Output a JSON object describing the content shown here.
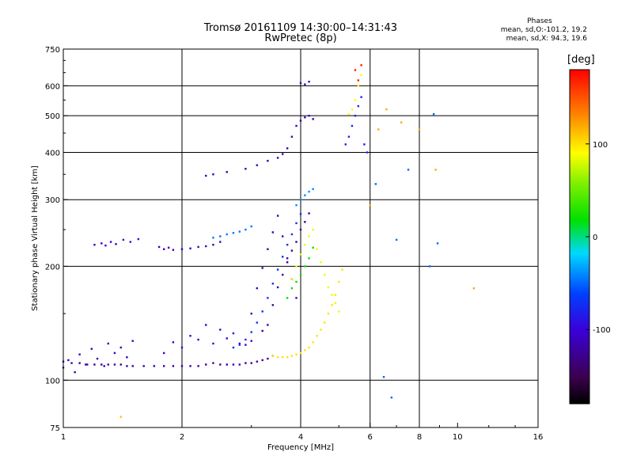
{
  "title": {
    "line1": "Tromsø 20161109 14:30:00–14:31:43",
    "line2": "RwPretec (8p)"
  },
  "phases": {
    "header": "Phases",
    "line1": "mean, sd,O:-101.2, 19.2",
    "line2": "mean, sd,X:  94.3, 19.6"
  },
  "colorbar": {
    "unit": "[deg]",
    "range": [
      -180,
      180
    ],
    "ticks": [
      100,
      0,
      -100
    ],
    "tick_labels": [
      "100",
      "0",
      "-100"
    ]
  },
  "chart_data": {
    "type": "scatter",
    "title": "Tromsø 20161109 14:30:00–14:31:43",
    "subtitle": "RwPretec (8p)",
    "xlabel": "Frequency [MHz]",
    "ylabel": "Stationary phase Virtual Height [km]",
    "xscale": "log",
    "yscale": "log",
    "xlim": [
      1,
      16
    ],
    "ylim": [
      75,
      750
    ],
    "xticks": [
      1,
      2,
      4,
      6,
      8,
      10,
      16
    ],
    "xtick_labels": [
      "1",
      "2",
      "4",
      "6",
      "8",
      "10",
      "16"
    ],
    "yticks": [
      75,
      100,
      200,
      300,
      400,
      500,
      600,
      750
    ],
    "ytick_labels": [
      "75",
      "100",
      "200",
      "300",
      "400",
      "500",
      "600",
      "750"
    ],
    "grid_x": [
      2,
      4,
      6,
      8
    ],
    "grid_y": [
      100,
      200,
      300,
      400,
      500,
      600
    ],
    "grid": true,
    "color_scale": "rainbow",
    "color_range": [
      -180,
      180
    ],
    "series": [
      {
        "traces": [
          {
            "x": [
              1.0,
              1.05,
              1.1,
              1.15,
              1.2,
              1.25,
              1.3,
              1.35,
              1.4,
              1.45,
              1.5,
              1.6,
              1.7,
              1.8,
              1.9,
              2.0,
              2.1,
              2.2,
              2.3,
              2.4,
              2.5,
              2.6,
              2.7,
              2.8,
              2.9,
              3.0,
              3.1,
              3.2,
              3.3,
              3.4
            ],
            "y": [
              112,
              111,
              111,
              110,
              110,
              110,
              110,
              110,
              110,
              109,
              109,
              109,
              109,
              109,
              109,
              109,
              109,
              109,
              110,
              111,
              110,
              110,
              110,
              110,
              111,
              111,
              112,
              113,
              114,
              116
            ],
            "phase": -120
          },
          {
            "x": [
              1.0,
              1.03,
              1.07,
              1.1,
              1.14,
              1.18,
              1.22,
              1.27,
              1.3,
              1.35,
              1.4,
              1.45,
              1.5
            ],
            "y": [
              108,
              113,
              105,
              117,
              110,
              121,
              114,
              109,
              125,
              118,
              122,
              115,
              127
            ],
            "phase": -110
          },
          {
            "x": [
              1.2,
              1.25,
              1.28,
              1.32,
              1.36
            ],
            "y": [
              228,
              230,
              227,
              232,
              229
            ],
            "phase": -105
          },
          {
            "x": [
              1.42,
              1.48,
              1.55
            ],
            "y": [
              235,
              232,
              236
            ],
            "phase": -90
          },
          {
            "x": [
              1.75,
              1.8,
              1.85,
              1.9,
              2.0,
              2.1,
              2.2,
              2.3,
              2.4,
              2.5
            ],
            "y": [
              225,
              222,
              224,
              221,
              222,
              223,
              225,
              226,
              228,
              232
            ],
            "phase": -110
          },
          {
            "x": [
              2.4,
              2.5,
              2.6,
              2.7,
              2.8,
              2.9,
              3.0
            ],
            "y": [
              238,
              240,
              243,
              245,
              247,
              250,
              255
            ],
            "phase": -45
          },
          {
            "x": [
              1.8,
              1.9,
              2.0,
              2.1,
              2.2,
              2.3,
              2.4,
              2.5,
              2.6,
              2.7,
              2.8,
              2.9,
              3.0
            ],
            "y": [
              118,
              126,
              122,
              131,
              128,
              140,
              125,
              136,
              129,
              133,
              125,
              124,
              127
            ],
            "phase": -100
          },
          {
            "x": [
              2.7,
              2.8,
              2.9,
              3.0,
              3.1,
              3.2,
              3.3,
              3.4,
              3.5,
              3.6,
              3.7,
              3.8,
              3.9,
              4.0
            ],
            "y": [
              122,
              124,
              128,
              134,
              142,
              152,
              165,
              180,
              196,
              212,
              228,
              243,
              260,
              275
            ],
            "phase": -70
          },
          {
            "x": [
              3.0,
              3.1,
              3.2,
              3.3,
              3.4,
              3.5,
              3.6,
              3.7,
              3.8,
              3.9
            ],
            "y": [
              150,
              175,
              198,
              222,
              246,
              272,
              240,
              210,
              185,
              165
            ],
            "phase": -115
          },
          {
            "x": [
              3.2,
              3.3,
              3.4,
              3.5,
              3.6,
              3.7,
              3.8,
              3.9,
              4.0,
              4.1,
              4.2
            ],
            "y": [
              135,
              140,
              158,
              176,
              190,
              205,
              220,
              232,
              250,
              262,
              276
            ],
            "phase": -125
          },
          {
            "x": [
              3.4,
              3.5,
              3.6,
              3.7,
              3.8,
              3.9,
              4.0,
              4.1,
              4.2,
              4.3,
              4.4,
              4.5,
              4.6,
              4.7,
              4.8,
              4.9,
              5.0,
              5.1
            ],
            "y": [
              116,
              115,
              115,
              115,
              116,
              117,
              118,
              120,
              122,
              126,
              131,
              136,
              142,
              150,
              158,
              168,
              182,
              196
            ],
            "phase": 100
          },
          {
            "x": [
              3.8,
              3.9,
              4.0,
              4.1,
              4.2,
              4.3,
              4.4,
              4.5,
              4.6,
              4.7,
              4.8,
              4.9,
              5.0
            ],
            "y": [
              185,
              200,
              215,
              228,
              240,
              250,
              222,
              205,
              190,
              176,
              168,
              160,
              152
            ],
            "phase": 85
          },
          {
            "x": [
              3.7,
              3.8,
              3.9,
              4.0,
              4.1,
              4.2,
              4.3
            ],
            "y": [
              165,
              175,
              182,
              190,
              200,
              210,
              224
            ],
            "phase": 20
          },
          {
            "x": [
              2.3,
              2.4,
              2.6,
              2.9,
              3.1,
              3.3,
              3.5,
              3.6,
              3.7,
              3.8,
              3.9,
              4.0,
              4.1,
              4.2,
              4.3
            ],
            "y": [
              347,
              350,
              355,
              362,
              370,
              380,
              387,
              396,
              410,
              440,
              470,
              485,
              495,
              500,
              490
            ],
            "phase": -115
          },
          {
            "x": [
              3.9,
              4.0,
              4.1,
              4.2,
              4.3
            ],
            "y": [
              290,
              300,
              308,
              315,
              320
            ],
            "phase": -40
          },
          {
            "x": [
              4.0,
              4.1,
              4.2
            ],
            "y": [
              610,
              605,
              615
            ],
            "phase": -110
          },
          {
            "x": [
              5.2,
              5.3,
              5.4,
              5.5,
              5.6,
              5.7,
              5.8,
              5.9
            ],
            "y": [
              420,
              440,
              470,
              500,
              530,
              560,
              420,
              400
            ],
            "phase": -80
          },
          {
            "x": [
              5.3,
              5.4,
              5.5,
              5.6,
              5.7
            ],
            "y": [
              505,
              520,
              550,
              600,
              640
            ],
            "phase": 90
          },
          {
            "x": [
              5.5,
              5.6,
              5.7
            ],
            "y": [
              660,
              620,
              680
            ],
            "phase": 170
          },
          {
            "x": [
              6.2,
              6.5,
              6.8,
              7.0,
              7.5,
              8.5,
              8.7,
              8.9
            ],
            "y": [
              330,
              102,
              90,
              235,
              360,
              200,
              505,
              230
            ],
            "phase": -50
          },
          {
            "x": [
              6.0,
              6.3,
              6.6,
              7.2,
              8.0,
              8.8,
              11.0
            ],
            "y": [
              290,
              460,
              520,
              480,
              460,
              360,
              175
            ],
            "phase": 120
          },
          {
            "x": [
              1.4
            ],
            "y": [
              80
            ],
            "phase": 110
          }
        ]
      }
    ]
  }
}
